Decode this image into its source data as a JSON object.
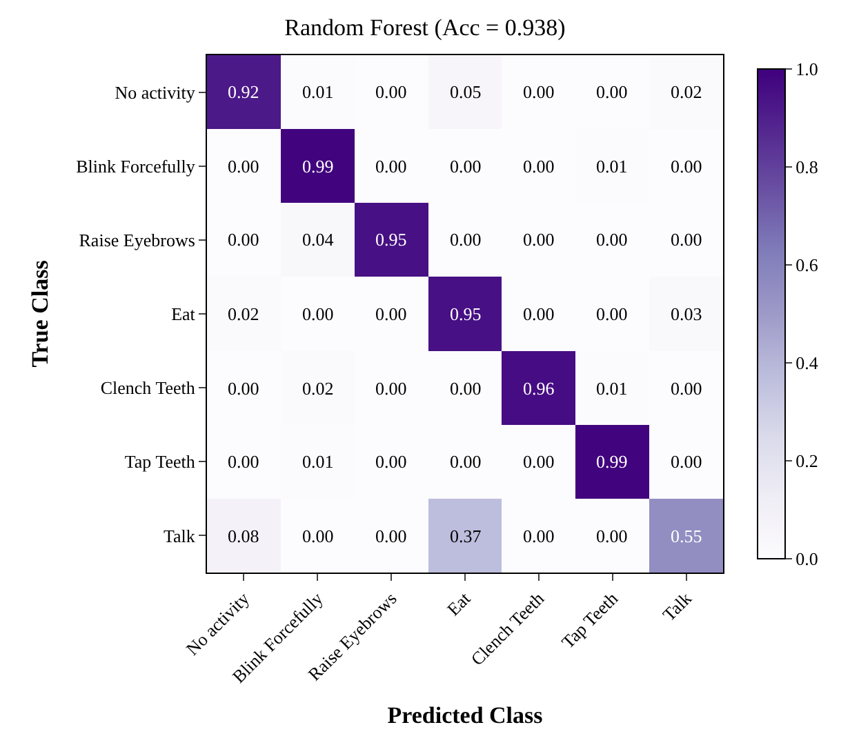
{
  "chart_data": {
    "type": "heatmap",
    "title": "Random Forest (Acc = 0.938)",
    "xlabel": "Predicted Class",
    "ylabel": "True Class",
    "categories": [
      "No activity",
      "Blink Forcefully",
      "Raise Eyebrows",
      "Eat",
      "Clench Teeth",
      "Tap Teeth",
      "Talk"
    ],
    "y_categories": [
      "No activity",
      "Blink Forcefully",
      "Raise Eyebrows",
      "Eat",
      "Clench Teeth",
      "Tap Teeth",
      "Talk"
    ],
    "cells": [
      [
        0.92,
        0.01,
        0.0,
        0.05,
        0.0,
        0.0,
        0.02
      ],
      [
        0.0,
        0.99,
        0.0,
        0.0,
        0.0,
        0.01,
        0.0
      ],
      [
        0.0,
        0.04,
        0.95,
        0.0,
        0.0,
        0.0,
        0.0
      ],
      [
        0.02,
        0.0,
        0.0,
        0.95,
        0.0,
        0.0,
        0.03
      ],
      [
        0.0,
        0.02,
        0.0,
        0.0,
        0.96,
        0.01,
        0.0
      ],
      [
        0.0,
        0.01,
        0.0,
        0.0,
        0.0,
        0.99,
        0.0
      ],
      [
        0.08,
        0.0,
        0.0,
        0.37,
        0.0,
        0.0,
        0.55
      ]
    ],
    "clim": [
      0,
      1
    ],
    "cticks": [
      {
        "value": 0,
        "label": "0.0"
      },
      {
        "value": 0.2,
        "label": "0.2"
      },
      {
        "value": 0.4,
        "label": "0.4"
      },
      {
        "value": 0.6,
        "label": "0.6"
      },
      {
        "value": 0.8,
        "label": "0.8"
      },
      {
        "value": 1,
        "label": "1.0"
      }
    ],
    "cell_labels": [
      [
        "0.92",
        "0.01",
        "0.00",
        "0.05",
        "0.00",
        "0.00",
        "0.02"
      ],
      [
        "0.00",
        "0.99",
        "0.00",
        "0.00",
        "0.00",
        "0.01",
        "0.00"
      ],
      [
        "0.00",
        "0.04",
        "0.95",
        "0.00",
        "0.00",
        "0.00",
        "0.00"
      ],
      [
        "0.02",
        "0.00",
        "0.00",
        "0.95",
        "0.00",
        "0.00",
        "0.03"
      ],
      [
        "0.00",
        "0.02",
        "0.00",
        "0.00",
        "0.96",
        "0.01",
        "0.00"
      ],
      [
        "0.00",
        "0.01",
        "0.00",
        "0.00",
        "0.00",
        "0.99",
        "0.00"
      ],
      [
        "0.08",
        "0.00",
        "0.00",
        "0.37",
        "0.00",
        "0.00",
        "0.55"
      ]
    ]
  }
}
